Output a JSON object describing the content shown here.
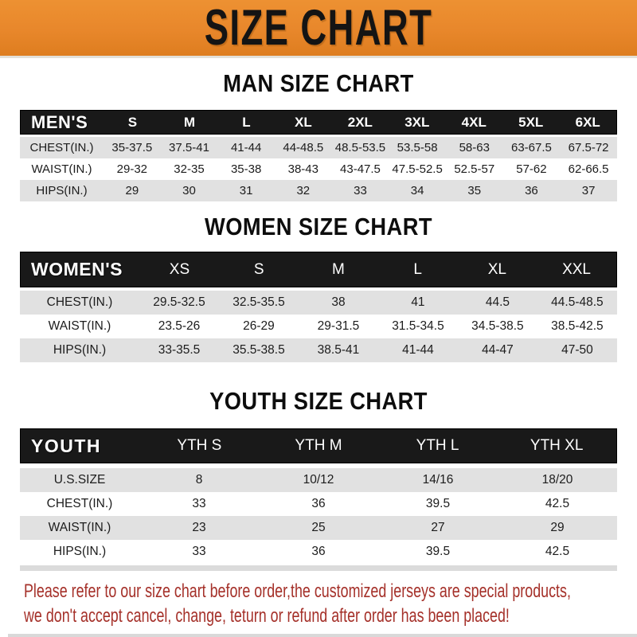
{
  "banner": {
    "title": "SIZE CHART"
  },
  "colors": {
    "banner_orange": "#E8872B",
    "header_black": "#191919",
    "row_gray": "#E1E1E1",
    "footer_red": "#A5312A"
  },
  "chart_data": [
    {
      "type": "table",
      "title": "MAN SIZE CHART",
      "corner": "MEN'S",
      "columns": [
        "S",
        "M",
        "L",
        "XL",
        "2XL",
        "3XL",
        "4XL",
        "5XL",
        "6XL"
      ],
      "rows": [
        {
          "label": "CHEST(IN.)",
          "values": [
            "35-37.5",
            "37.5-41",
            "41-44",
            "44-48.5",
            "48.5-53.5",
            "53.5-58",
            "58-63",
            "63-67.5",
            "67.5-72"
          ]
        },
        {
          "label": "WAIST(IN.)",
          "values": [
            "29-32",
            "32-35",
            "35-38",
            "38-43",
            "43-47.5",
            "47.5-52.5",
            "52.5-57",
            "57-62",
            "62-66.5"
          ]
        },
        {
          "label": "HIPS(IN.)",
          "values": [
            "29",
            "30",
            "31",
            "32",
            "33",
            "34",
            "35",
            "36",
            "37"
          ]
        }
      ]
    },
    {
      "type": "table",
      "title": "WOMEN SIZE CHART",
      "corner": "WOMEN'S",
      "columns": [
        "XS",
        "S",
        "M",
        "L",
        "XL",
        "XXL"
      ],
      "rows": [
        {
          "label": "CHEST(IN.)",
          "values": [
            "29.5-32.5",
            "32.5-35.5",
            "38",
            "41",
            "44.5",
            "44.5-48.5"
          ]
        },
        {
          "label": "WAIST(IN.)",
          "values": [
            "23.5-26",
            "26-29",
            "29-31.5",
            "31.5-34.5",
            "34.5-38.5",
            "38.5-42.5"
          ]
        },
        {
          "label": "HIPS(IN.)",
          "values": [
            "33-35.5",
            "35.5-38.5",
            "38.5-41",
            "41-44",
            "44-47",
            "47-50"
          ]
        }
      ]
    },
    {
      "type": "table",
      "title": "YOUTH SIZE CHART",
      "corner": "YOUTH",
      "columns": [
        "YTH S",
        "YTH M",
        "YTH L",
        "YTH XL"
      ],
      "rows": [
        {
          "label": "U.S.SIZE",
          "values": [
            "8",
            "10/12",
            "14/16",
            "18/20"
          ]
        },
        {
          "label": "CHEST(IN.)",
          "values": [
            "33",
            "36",
            "39.5",
            "42.5"
          ]
        },
        {
          "label": "WAIST(IN.)",
          "values": [
            "23",
            "25",
            "27",
            "29"
          ]
        },
        {
          "label": "HIPS(IN.)",
          "values": [
            "33",
            "36",
            "39.5",
            "42.5"
          ]
        }
      ]
    }
  ],
  "footer": {
    "line1": "Please refer to our size chart before order,the customized jerseys are special products,",
    "line2": "we don't accept cancel, change, teturn or refund after order has been placed!"
  }
}
